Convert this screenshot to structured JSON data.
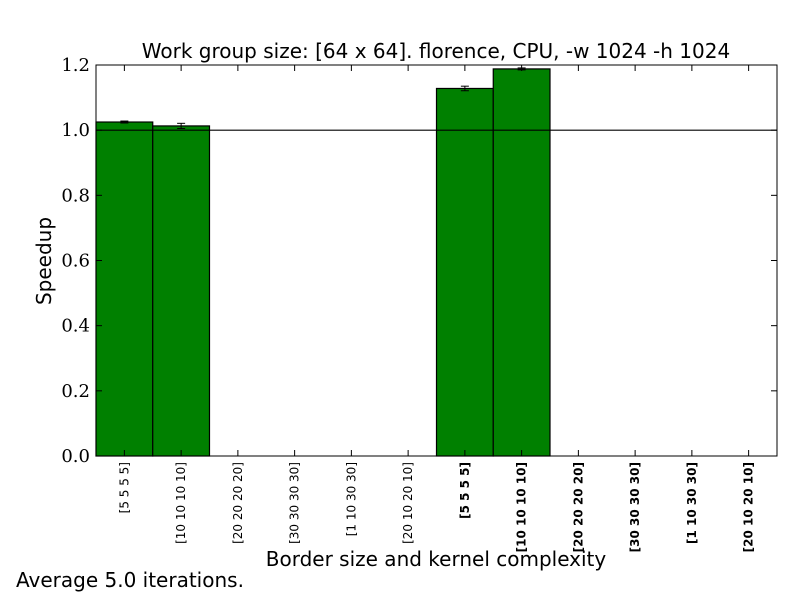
{
  "chart_data": {
    "type": "bar",
    "title": "Work group size: [64 x 64]. florence, CPU, -w 1024 -h 1024",
    "xlabel": "Border size and kernel complexity",
    "ylabel": "Speedup",
    "ylim": [
      0.0,
      1.2
    ],
    "yticks": [
      "0.0",
      "0.2",
      "0.4",
      "0.6",
      "0.8",
      "1.0",
      "1.2"
    ],
    "ytick_values": [
      0.0,
      0.2,
      0.4,
      0.6,
      0.8,
      1.0,
      1.2
    ],
    "categories": [
      "[5 5 5 5]",
      "[10 10 10 10]",
      "[20 20 20 20]",
      "[30 30 30 30]",
      "[1 10 30 30]",
      "[20 10 20 10]",
      "[5 5 5 5]",
      "[10 10 10 10]",
      "[20 20 20 20]",
      "[30 30 30 30]",
      "[1 10 30 30]",
      "[20 10 20 10]"
    ],
    "category_bold": [
      false,
      false,
      false,
      false,
      false,
      false,
      true,
      true,
      true,
      true,
      true,
      true
    ],
    "values": [
      1.025,
      1.013,
      0,
      0,
      0,
      0,
      1.128,
      1.188,
      0,
      0,
      0,
      0
    ],
    "errors": [
      0.003,
      0.008,
      0,
      0,
      0,
      0,
      0.007,
      0.003,
      0,
      0,
      0,
      0
    ],
    "reference_line": 1.0,
    "bar_color": "#008000",
    "grid": false
  },
  "footnote": "Average 5.0 iterations."
}
